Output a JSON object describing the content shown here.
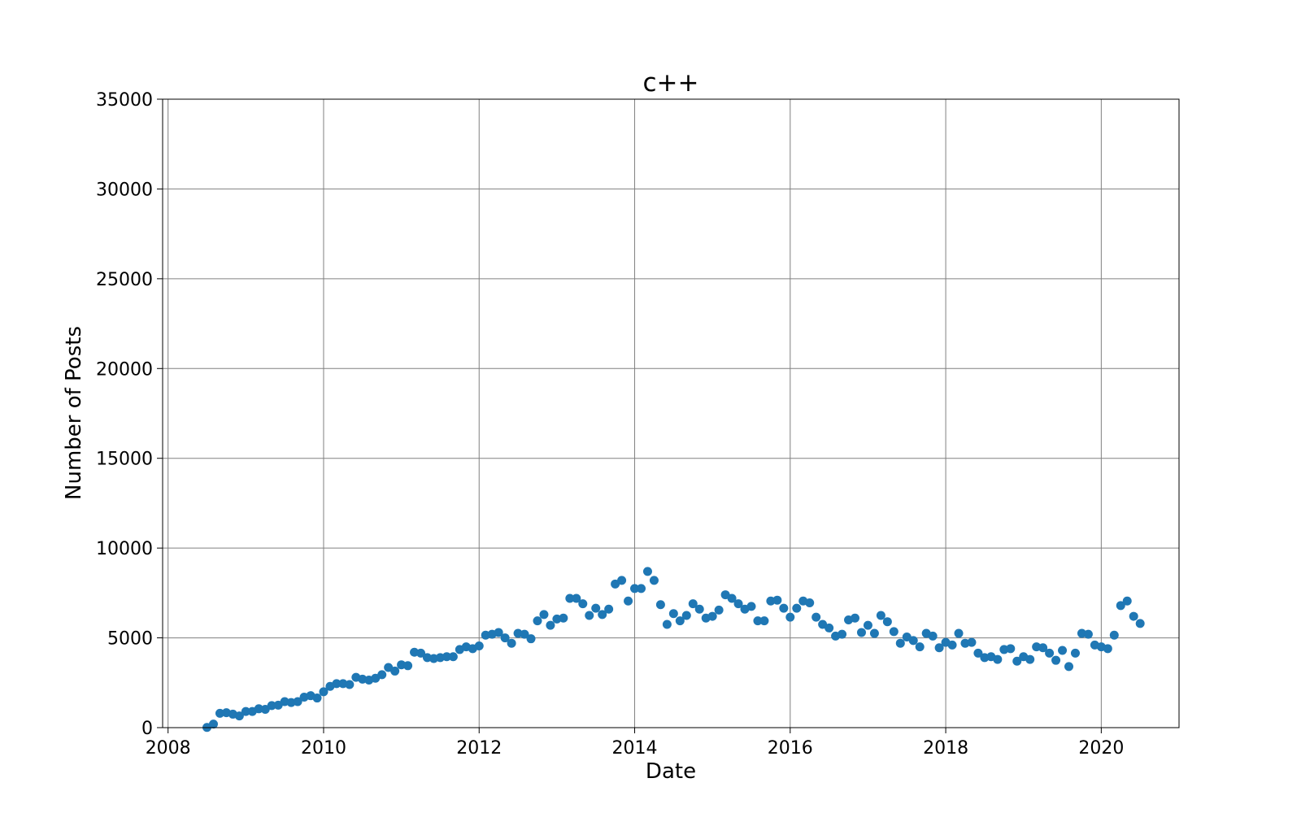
{
  "chart_data": {
    "type": "scatter",
    "title": "c++",
    "xlabel": "Date",
    "ylabel": "Number of Posts",
    "xlim": [
      2007.93,
      2021.0
    ],
    "ylim": [
      0,
      35000
    ],
    "xticks": [
      2008,
      2010,
      2012,
      2014,
      2016,
      2018,
      2020
    ],
    "xtick_labels": [
      "2008",
      "2010",
      "2012",
      "2014",
      "2016",
      "2018",
      "2020"
    ],
    "yticks": [
      0,
      5000,
      10000,
      15000,
      20000,
      25000,
      30000,
      35000
    ],
    "ytick_labels": [
      "0",
      "5000",
      "10000",
      "15000",
      "20000",
      "25000",
      "30000",
      "35000"
    ],
    "grid": true,
    "marker_color": "#1f77b4",
    "series": [
      {
        "name": "",
        "x": [
          "2008-07",
          "2008-08",
          "2008-09",
          "2008-10",
          "2008-11",
          "2008-12",
          "2009-01",
          "2009-02",
          "2009-03",
          "2009-04",
          "2009-05",
          "2009-06",
          "2009-07",
          "2009-08",
          "2009-09",
          "2009-10",
          "2009-11",
          "2009-12",
          "2010-01",
          "2010-02",
          "2010-03",
          "2010-04",
          "2010-05",
          "2010-06",
          "2010-07",
          "2010-08",
          "2010-09",
          "2010-10",
          "2010-11",
          "2010-12",
          "2011-01",
          "2011-02",
          "2011-03",
          "2011-04",
          "2011-05",
          "2011-06",
          "2011-07",
          "2011-08",
          "2011-09",
          "2011-10",
          "2011-11",
          "2011-12",
          "2012-01",
          "2012-02",
          "2012-03",
          "2012-04",
          "2012-05",
          "2012-06",
          "2012-07",
          "2012-08",
          "2012-09",
          "2012-10",
          "2012-11",
          "2012-12",
          "2013-01",
          "2013-02",
          "2013-03",
          "2013-04",
          "2013-05",
          "2013-06",
          "2013-07",
          "2013-08",
          "2013-09",
          "2013-10",
          "2013-11",
          "2013-12",
          "2014-01",
          "2014-02",
          "2014-03",
          "2014-04",
          "2014-05",
          "2014-06",
          "2014-07",
          "2014-08",
          "2014-09",
          "2014-10",
          "2014-11",
          "2014-12",
          "2015-01",
          "2015-02",
          "2015-03",
          "2015-04",
          "2015-05",
          "2015-06",
          "2015-07",
          "2015-08",
          "2015-09",
          "2015-10",
          "2015-11",
          "2015-12",
          "2016-01",
          "2016-02",
          "2016-03",
          "2016-04",
          "2016-05",
          "2016-06",
          "2016-07",
          "2016-08",
          "2016-09",
          "2016-10",
          "2016-11",
          "2016-12",
          "2017-01",
          "2017-02",
          "2017-03",
          "2017-04",
          "2017-05",
          "2017-06",
          "2017-07",
          "2017-08",
          "2017-09",
          "2017-10",
          "2017-11",
          "2017-12",
          "2018-01",
          "2018-02",
          "2018-03",
          "2018-04",
          "2018-05",
          "2018-06",
          "2018-07",
          "2018-08",
          "2018-09",
          "2018-10",
          "2018-11",
          "2018-12",
          "2019-01",
          "2019-02",
          "2019-03",
          "2019-04",
          "2019-05",
          "2019-06",
          "2019-07",
          "2019-08",
          "2019-09",
          "2019-10",
          "2019-11",
          "2019-12",
          "2020-01",
          "2020-02",
          "2020-03",
          "2020-04",
          "2020-05",
          "2020-06",
          "2020-07"
        ],
        "y": [
          10,
          200,
          800,
          830,
          750,
          650,
          900,
          900,
          1050,
          1020,
          1230,
          1250,
          1450,
          1400,
          1450,
          1700,
          1780,
          1650,
          2000,
          2300,
          2450,
          2450,
          2400,
          2800,
          2700,
          2650,
          2750,
          2950,
          3350,
          3150,
          3500,
          3450,
          4200,
          4150,
          3900,
          3850,
          3900,
          3950,
          3950,
          4350,
          4500,
          4400,
          4550,
          5150,
          5200,
          5300,
          5000,
          4700,
          5250,
          5200,
          4950,
          5950,
          6300,
          5700,
          6050,
          6100,
          7200,
          7200,
          6900,
          6250,
          6650,
          6300,
          6600,
          8000,
          8200,
          7050,
          7750,
          7750,
          8700,
          8200,
          6850,
          5750,
          6350,
          5950,
          6250,
          6900,
          6600,
          6100,
          6200,
          6550,
          7400,
          7200,
          6900,
          6600,
          6750,
          5950,
          5950,
          7050,
          7100,
          6650,
          6150,
          6650,
          7050,
          6950,
          6150,
          5750,
          5550,
          5100,
          5200,
          6000,
          6100,
          5300,
          5700,
          5250,
          6250,
          5900,
          5350,
          4700,
          5050,
          4850,
          4500,
          5250,
          5100,
          4450,
          4750,
          4600,
          5250,
          4700,
          4750,
          4150,
          3900,
          3950,
          3800,
          4350,
          4400,
          3700,
          3950,
          3800,
          4500,
          4450,
          4150,
          3750,
          4300,
          3400,
          4150,
          5250,
          5200,
          4600,
          4500,
          4400,
          5150,
          6800,
          7050,
          6200,
          5800
        ]
      }
    ]
  }
}
